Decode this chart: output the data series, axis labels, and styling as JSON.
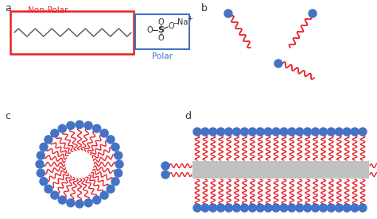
{
  "bg_color": "#ffffff",
  "red_color": "#e8202a",
  "blue_color": "#4472c4",
  "gray_color": "#c0c0c0",
  "black_color": "#333333",
  "label_a": "a",
  "label_b": "b",
  "label_c": "c",
  "label_d": "d",
  "nonpolar_label": "Non-Polar",
  "polar_label": "Polar",
  "fig_w": 4.74,
  "fig_h": 2.76,
  "dpi": 100
}
